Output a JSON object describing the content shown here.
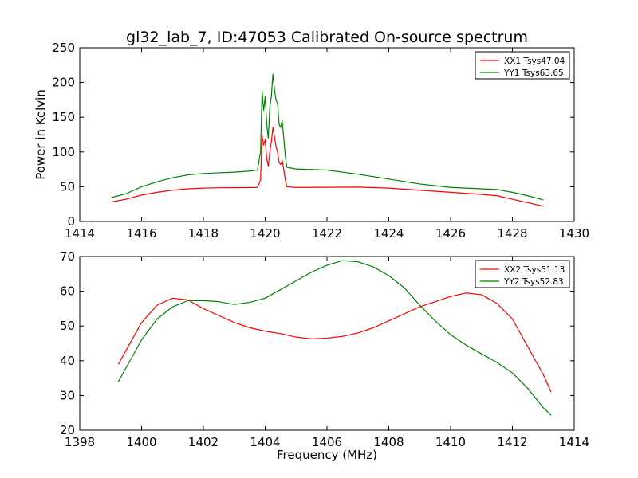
{
  "figure": {
    "title": "gl32_lab_7, ID:47053 Calibrated On-source spectrum"
  },
  "chart_data": [
    {
      "type": "line",
      "title": "gl32_lab_7, ID:47053 Calibrated On-source spectrum",
      "xlabel": "",
      "ylabel": "Power in Kelvin",
      "xlim": [
        1414,
        1430
      ],
      "ylim": [
        0,
        250
      ],
      "xticks": [
        1414,
        1416,
        1418,
        1420,
        1422,
        1424,
        1426,
        1428,
        1430
      ],
      "yticks": [
        0,
        50,
        100,
        150,
        200,
        250
      ],
      "grid": false,
      "legend_position": "top-right",
      "series": [
        {
          "name": "XX1 Tsys47.04",
          "color": "#ff0000",
          "points": [
            [
              1415.0,
              28
            ],
            [
              1415.5,
              32
            ],
            [
              1416.0,
              38
            ],
            [
              1416.5,
              42
            ],
            [
              1417.0,
              45
            ],
            [
              1417.5,
              47
            ],
            [
              1418.0,
              48
            ],
            [
              1418.5,
              48.5
            ],
            [
              1419.0,
              48.6
            ],
            [
              1419.5,
              48.8
            ],
            [
              1419.75,
              49
            ],
            [
              1419.85,
              60
            ],
            [
              1419.9,
              123
            ],
            [
              1419.95,
              110
            ],
            [
              1420.0,
              118
            ],
            [
              1420.05,
              90
            ],
            [
              1420.1,
              80
            ],
            [
              1420.15,
              100
            ],
            [
              1420.2,
              115
            ],
            [
              1420.25,
              135
            ],
            [
              1420.3,
              122
            ],
            [
              1420.35,
              108
            ],
            [
              1420.4,
              100
            ],
            [
              1420.45,
              85
            ],
            [
              1420.5,
              82
            ],
            [
              1420.55,
              88
            ],
            [
              1420.6,
              75
            ],
            [
              1420.65,
              60
            ],
            [
              1420.7,
              50
            ],
            [
              1421.0,
              49
            ],
            [
              1422.0,
              49.2
            ],
            [
              1423.0,
              49.5
            ],
            [
              1424.0,
              48
            ],
            [
              1425.0,
              45
            ],
            [
              1426.0,
              42
            ],
            [
              1427.0,
              39
            ],
            [
              1427.5,
              37
            ],
            [
              1428.0,
              32
            ],
            [
              1428.5,
              27
            ],
            [
              1429.0,
              22
            ]
          ]
        },
        {
          "name": "YY1 Tsys63.65",
          "color": "#008000",
          "points": [
            [
              1415.0,
              34
            ],
            [
              1415.5,
              40
            ],
            [
              1416.0,
              50
            ],
            [
              1416.5,
              57
            ],
            [
              1417.0,
              63
            ],
            [
              1417.5,
              67
            ],
            [
              1418.0,
              69
            ],
            [
              1418.5,
              70
            ],
            [
              1419.0,
              71
            ],
            [
              1419.5,
              72.5
            ],
            [
              1419.75,
              74
            ],
            [
              1419.85,
              100
            ],
            [
              1419.9,
              188
            ],
            [
              1419.95,
              160
            ],
            [
              1420.0,
              180
            ],
            [
              1420.05,
              140
            ],
            [
              1420.1,
              120
            ],
            [
              1420.15,
              165
            ],
            [
              1420.2,
              180
            ],
            [
              1420.25,
              212
            ],
            [
              1420.3,
              190
            ],
            [
              1420.35,
              175
            ],
            [
              1420.4,
              170
            ],
            [
              1420.45,
              140
            ],
            [
              1420.5,
              135
            ],
            [
              1420.55,
              145
            ],
            [
              1420.6,
              120
            ],
            [
              1420.65,
              95
            ],
            [
              1420.7,
              78
            ],
            [
              1421.0,
              75.5
            ],
            [
              1422.0,
              74
            ],
            [
              1423.0,
              68
            ],
            [
              1424.0,
              61
            ],
            [
              1425.0,
              54
            ],
            [
              1426.0,
              49
            ],
            [
              1427.0,
              47
            ],
            [
              1427.5,
              46
            ],
            [
              1428.0,
              42
            ],
            [
              1428.5,
              37
            ],
            [
              1429.0,
              31
            ]
          ]
        }
      ]
    },
    {
      "type": "line",
      "xlabel": "Frequency (MHz)",
      "ylabel": "",
      "xlim": [
        1398,
        1414
      ],
      "ylim": [
        20,
        70
      ],
      "xticks": [
        1398,
        1400,
        1402,
        1404,
        1406,
        1408,
        1410,
        1412,
        1414
      ],
      "yticks": [
        20,
        30,
        40,
        50,
        60,
        70
      ],
      "grid": false,
      "legend_position": "top-right",
      "series": [
        {
          "name": "XX2 Tsys51.13",
          "color": "#ff0000",
          "points": [
            [
              1399.25,
              39
            ],
            [
              1399.5,
              43
            ],
            [
              1400.0,
              51
            ],
            [
              1400.5,
              56
            ],
            [
              1401.0,
              58
            ],
            [
              1401.5,
              57.5
            ],
            [
              1402.0,
              55
            ],
            [
              1402.5,
              53
            ],
            [
              1403.0,
              51
            ],
            [
              1403.5,
              49.5
            ],
            [
              1404.0,
              48.5
            ],
            [
              1404.5,
              47.8
            ],
            [
              1405.0,
              46.8
            ],
            [
              1405.5,
              46.3
            ],
            [
              1406.0,
              46.5
            ],
            [
              1406.5,
              47
            ],
            [
              1407.0,
              48
            ],
            [
              1407.5,
              49.5
            ],
            [
              1408.0,
              51.5
            ],
            [
              1408.5,
              53.5
            ],
            [
              1409.0,
              55.5
            ],
            [
              1409.5,
              57
            ],
            [
              1410.0,
              58.5
            ],
            [
              1410.5,
              59.5
            ],
            [
              1411.0,
              59
            ],
            [
              1411.5,
              56.5
            ],
            [
              1412.0,
              52
            ],
            [
              1412.5,
              44
            ],
            [
              1413.0,
              36
            ],
            [
              1413.25,
              31
            ]
          ]
        },
        {
          "name": "YY2 Tsys52.83",
          "color": "#008000",
          "points": [
            [
              1399.25,
              34
            ],
            [
              1399.5,
              38
            ],
            [
              1400.0,
              46
            ],
            [
              1400.5,
              52
            ],
            [
              1401.0,
              55.5
            ],
            [
              1401.5,
              57.3
            ],
            [
              1402.0,
              57.3
            ],
            [
              1402.5,
              57
            ],
            [
              1403.0,
              56.2
            ],
            [
              1403.5,
              56.8
            ],
            [
              1404.0,
              58
            ],
            [
              1404.5,
              60.5
            ],
            [
              1405.0,
              63
            ],
            [
              1405.5,
              65.5
            ],
            [
              1406.0,
              67.5
            ],
            [
              1406.5,
              68.8
            ],
            [
              1407.0,
              68.5
            ],
            [
              1407.5,
              67
            ],
            [
              1408.0,
              64.5
            ],
            [
              1408.5,
              61
            ],
            [
              1409.0,
              56
            ],
            [
              1409.5,
              51.5
            ],
            [
              1410.0,
              47.5
            ],
            [
              1410.5,
              44.5
            ],
            [
              1411.0,
              42
            ],
            [
              1411.5,
              39.5
            ],
            [
              1412.0,
              36.5
            ],
            [
              1412.5,
              32
            ],
            [
              1413.0,
              26.5
            ],
            [
              1413.25,
              24.3
            ]
          ]
        }
      ]
    }
  ]
}
